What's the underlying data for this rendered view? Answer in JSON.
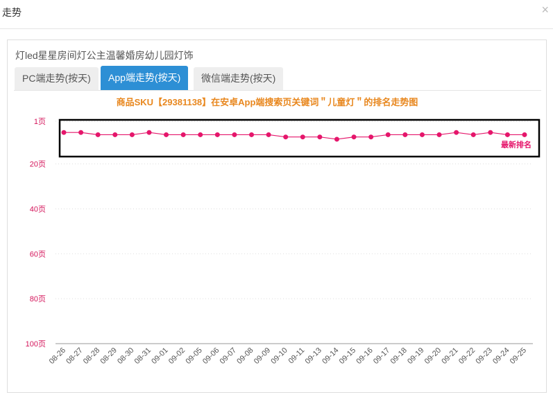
{
  "dialog": {
    "title": "走势",
    "close": "×"
  },
  "product": "灯led星星房间灯公主温馨婚房幼儿园灯饰",
  "tabs": [
    "PC端走势(按天)",
    "App端走势(按天)",
    "微信端走势(按天)"
  ],
  "chart_data": {
    "type": "line",
    "title": "商品SKU【29381138】在安卓App端搜索页关键词＂儿童灯＂的排名走势图",
    "annotation": "最新排名",
    "categories": [
      "08-26",
      "08-27",
      "08-28",
      "08-29",
      "08-30",
      "08-31",
      "09-01",
      "09-02",
      "09-05",
      "09-06",
      "09-07",
      "09-08",
      "09-09",
      "09-10",
      "09-11",
      "09-13",
      "09-14",
      "09-15",
      "09-16",
      "09-17",
      "09-18",
      "09-19",
      "09-20",
      "09-21",
      "09-22",
      "09-23",
      "09-24",
      "09-25"
    ],
    "series": [
      {
        "color": "#e5166b",
        "values": [
          6,
          6,
          7,
          7,
          7,
          6,
          7,
          7,
          7,
          7,
          7,
          7,
          7,
          8,
          8,
          8,
          9,
          8,
          8,
          7,
          7,
          7,
          7,
          6,
          7,
          6,
          7,
          7
        ]
      }
    ],
    "ylim": [
      1,
      100
    ],
    "inverted": true,
    "yticks": [
      {
        "value": 1,
        "label": "1页"
      },
      {
        "value": 20,
        "label": "20页"
      },
      {
        "value": 40,
        "label": "40页"
      },
      {
        "value": 60,
        "label": "60页"
      },
      {
        "value": 80,
        "label": "80页"
      },
      {
        "value": 100,
        "label": "100页"
      }
    ],
    "grid": true
  }
}
